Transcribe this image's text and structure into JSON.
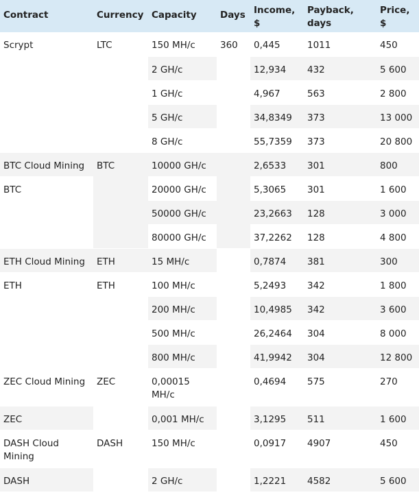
{
  "table": {
    "headers": {
      "contract": "Contract",
      "currency": "Currency",
      "capacity": "Capacity",
      "days": "Days",
      "income": "Income, $",
      "payback": "Payback, days",
      "price": "Price, $"
    },
    "rows": [
      {
        "contract": "Scrypt",
        "currency": "LTC",
        "capacity": "150 MH/c",
        "days": "360",
        "income": "0,445",
        "payback": "1011",
        "price": "450"
      },
      {
        "capacity": "2 GH/c",
        "income": "12,934",
        "payback": "432",
        "price": "5 600"
      },
      {
        "capacity": "1 GH/c",
        "income": "4,967",
        "payback": "563",
        "price": "2 800"
      },
      {
        "capacity": "5 GH/c",
        "income": "34,8349",
        "payback": "373",
        "price": "13 000"
      },
      {
        "capacity": "8 GH/c",
        "income": "55,7359",
        "payback": "373",
        "price": "20 800"
      },
      {
        "contract": "BTC Cloud Mining",
        "currency": "BTC",
        "capacity": "10000 GH/c",
        "income": "2,6533",
        "payback": "301",
        "price": "800"
      },
      {
        "contract": "BTC",
        "capacity": "20000 GH/c",
        "income": "5,3065",
        "payback": "301",
        "price": "1 600"
      },
      {
        "capacity": "50000 GH/c",
        "income": "23,2663",
        "payback": "128",
        "price": "3 000"
      },
      {
        "capacity": "80000 GH/c",
        "income": "37,2262",
        "payback": "128",
        "price": "4 800"
      },
      {
        "contract": "ETH Cloud Mining",
        "currency": "ETH",
        "capacity": "15 MH/c",
        "income": "0,7874",
        "payback": "381",
        "price": "300"
      },
      {
        "contract": "ETH",
        "currency": "ETH",
        "capacity": "100 MH/c",
        "income": "5,2493",
        "payback": "342",
        "price": "1 800"
      },
      {
        "capacity": "200 MH/c",
        "income": "10,4985",
        "payback": "342",
        "price": "3 600"
      },
      {
        "capacity": "500 MH/c",
        "income": "26,2464",
        "payback": "304",
        "price": "8 000"
      },
      {
        "capacity": "800 MH/c",
        "income": "41,9942",
        "payback": "304",
        "price": "12 800"
      },
      {
        "contract": "ZEC Cloud Mining",
        "currency": "ZEC",
        "capacity": "0,00015 MH/c",
        "income": "0,4694",
        "payback": "575",
        "price": "270"
      },
      {
        "contract": "ZEC",
        "capacity": "0,001 MH/c",
        "income": "3,1295",
        "payback": "511",
        "price": "1 600"
      },
      {
        "contract": "DASH Cloud Mining",
        "currency": "DASH",
        "capacity": "150 MH/c",
        "income": "0,0917",
        "payback": "4907",
        "price": "450"
      },
      {
        "contract": "DASH",
        "capacity": "2 GH/c",
        "income": "1,2221",
        "payback": "4582",
        "price": "5 600"
      }
    ]
  }
}
